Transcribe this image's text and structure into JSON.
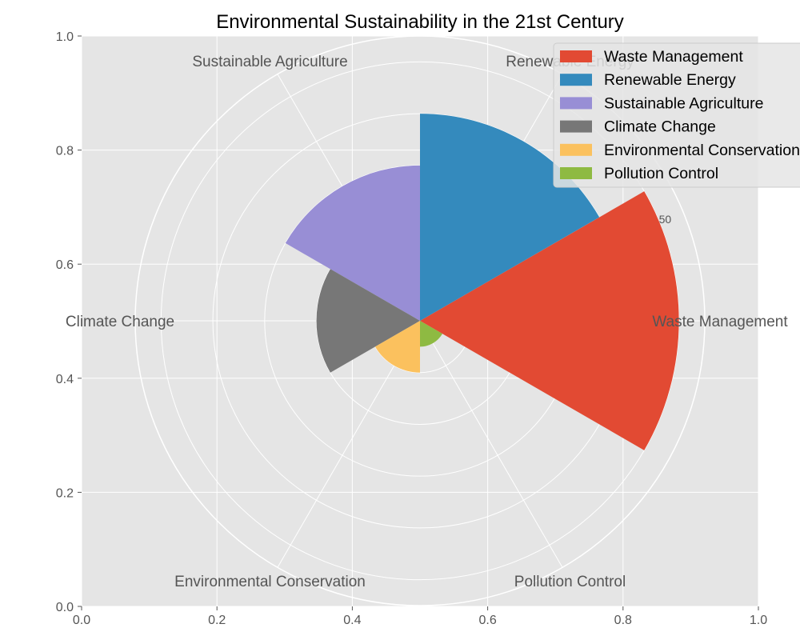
{
  "chart_data": {
    "type": "polar-bar",
    "title": "Environmental Sustainability in the 21st Century",
    "categories": [
      "Waste Management",
      "Renewable Energy",
      "Sustainable Agriculture",
      "Climate Change",
      "Environmental Conservation",
      "Pollution Control"
    ],
    "values": [
      50,
      40,
      30,
      20,
      10,
      5
    ],
    "colors": [
      "#E24A33",
      "#348ABD",
      "#988ED5",
      "#777777",
      "#FBC15E",
      "#8EBA42"
    ],
    "radial_ticks": [
      "50"
    ],
    "radial_max": 55,
    "legend": {
      "position": "upper-right",
      "entries": [
        "Waste Management",
        "Renewable Energy",
        "Sustainable Agriculture",
        "Climate Change",
        "Environmental Conservation",
        "Pollution Control"
      ]
    },
    "cartesian_axes": {
      "xlim": [
        0,
        1
      ],
      "ylim": [
        0,
        1
      ],
      "x_ticks": [
        "0.0",
        "0.2",
        "0.4",
        "0.6",
        "0.8",
        "1.0"
      ],
      "y_ticks": [
        "0.0",
        "0.2",
        "0.4",
        "0.6",
        "0.8",
        "1.0"
      ]
    },
    "grid": true
  }
}
